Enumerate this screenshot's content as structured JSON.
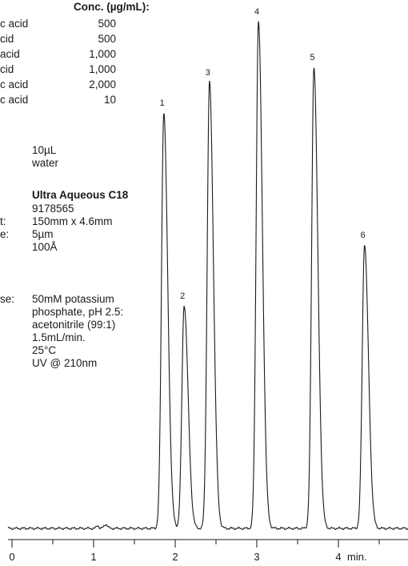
{
  "peak_table": {
    "header": "Conc. (µg/mL):",
    "rows": [
      {
        "name": "c acid",
        "conc": "500"
      },
      {
        "name": "cid",
        "conc": "500"
      },
      {
        "name": "acid",
        "conc": "1,000"
      },
      {
        "name": "cid",
        "conc": "1,000"
      },
      {
        "name": "c acid",
        "conc": "2,000"
      },
      {
        "name": "c acid",
        "conc": "10"
      }
    ]
  },
  "sample": {
    "values": [
      "10µL",
      "water"
    ]
  },
  "column": {
    "name": "Ultra Aqueous C18",
    "catalog": "9178565",
    "dim_label_frag": "t:",
    "dim": "150mm x 4.6mm",
    "particle_label_frag": "e:",
    "particle": "5µm",
    "pore": "100Å"
  },
  "conditions": {
    "label_frag": "se:",
    "lines": [
      "50mM potassium",
      "phosphate, pH 2.5:",
      "acetonitrile (99:1)",
      "1.5mL/min.",
      "25°C",
      "UV @ 210nm"
    ]
  },
  "chart_data": {
    "type": "line",
    "x_unit": "min.",
    "xlim": [
      0,
      4.8
    ],
    "x_ticks": [
      0,
      1,
      2,
      3,
      4
    ],
    "x_ticklabels": [
      "0",
      "1",
      "2",
      "3",
      "4"
    ],
    "grid": false,
    "peaks": [
      {
        "label": "1",
        "retention_time": 1.86,
        "height": 0.82
      },
      {
        "label": "2",
        "retention_time": 2.11,
        "height": 0.44
      },
      {
        "label": "3",
        "retention_time": 2.42,
        "height": 0.88
      },
      {
        "label": "4",
        "retention_time": 3.02,
        "height": 1.0
      },
      {
        "label": "5",
        "retention_time": 3.7,
        "height": 0.91
      },
      {
        "label": "6",
        "retention_time": 4.32,
        "height": 0.56
      }
    ],
    "series": [
      {
        "values": []
      }
    ]
  }
}
